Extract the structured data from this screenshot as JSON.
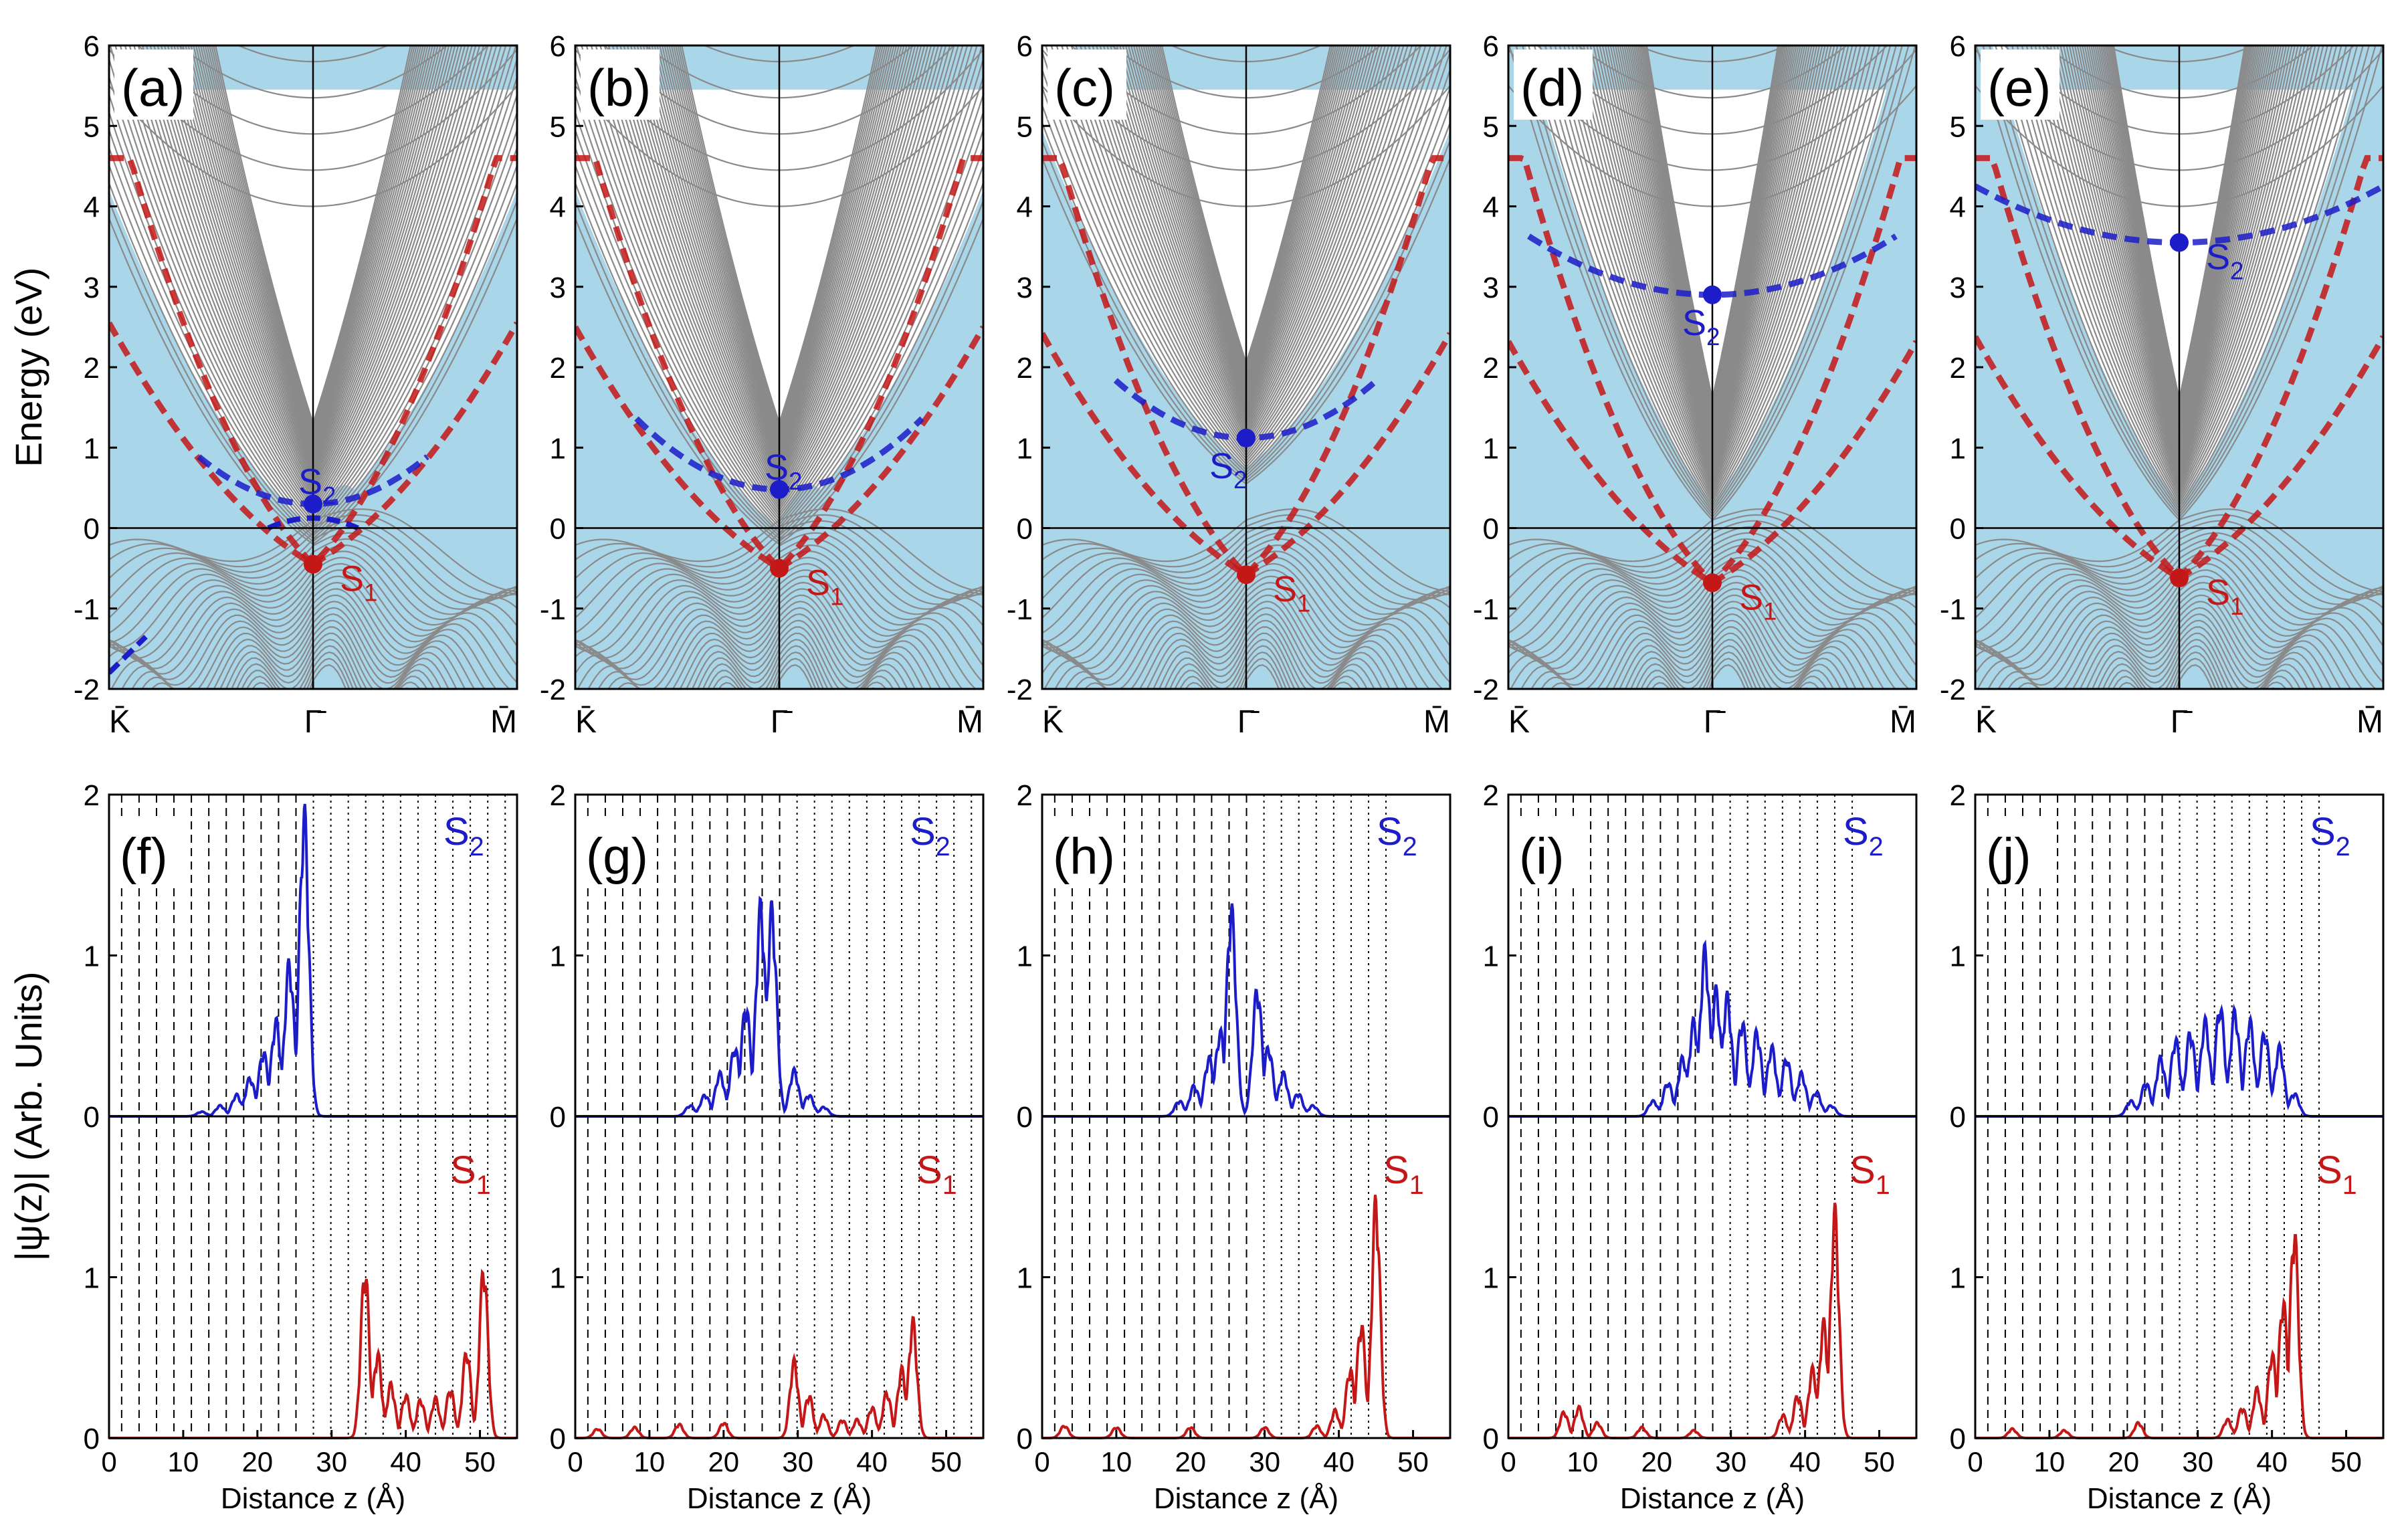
{
  "colors": {
    "s1": "#c41818",
    "s2": "#1c1cc8",
    "bulk_fill": "#aad6ea",
    "bulk_line": "#8a8a8a",
    "axis": "#000000"
  },
  "chart_data": {
    "band_structures": {
      "type": "line",
      "ylabel": "Energy (eV)",
      "ylim": [
        -2,
        6
      ],
      "yticks": [
        -2,
        -1,
        0,
        1,
        2,
        3,
        4,
        5,
        6
      ],
      "xticks": [
        "K̄",
        "Γ̄",
        "M̄"
      ],
      "panels": [
        {
          "label": "(a)",
          "s1_label": "S",
          "s1_sub": "1",
          "s2_label": "S",
          "s2_sub": "2",
          "s1_energy": -0.45,
          "s2_energy": 0.3,
          "s2_curv": 7.5,
          "s2_range": 0.28,
          "s2_lower_extra": true
        },
        {
          "label": "(b)",
          "s1_label": "S",
          "s1_sub": "1",
          "s2_label": "S",
          "s2_sub": "2",
          "s1_energy": -0.5,
          "s2_energy": 0.48,
          "s2_curv": 7.2,
          "s2_range": 0.35,
          "s2_lower_extra": false
        },
        {
          "label": "(c)",
          "s1_label": "S",
          "s1_sub": "1",
          "s2_label": "S",
          "s2_sub": "2",
          "s1_energy": -0.58,
          "s2_energy": 1.12,
          "s2_curv": 7.0,
          "s2_range": 0.32,
          "s2_lower_extra": false
        },
        {
          "label": "(d)",
          "s1_label": "S",
          "s1_sub": "1",
          "s2_label": "S",
          "s2_sub": "2",
          "s1_energy": -0.68,
          "s2_energy": 2.9,
          "s2_curv": 3.6,
          "s2_range": 0.45,
          "s2_lower_extra": false
        },
        {
          "label": "(e)",
          "s1_label": "S",
          "s1_sub": "1",
          "s2_label": "S",
          "s2_sub": "2",
          "s1_energy": -0.62,
          "s2_energy": 3.55,
          "s2_curv": 2.8,
          "s2_range": 0.5,
          "s2_lower_extra": false
        }
      ]
    },
    "wavefunctions": {
      "type": "line",
      "ylabel": "|ψ(z)| (Arb. Units)",
      "xlabel": "Distance z (Å)",
      "xlim": [
        0,
        55
      ],
      "xticks": [
        0,
        10,
        20,
        30,
        40,
        50
      ],
      "ylim_each": [
        0,
        2
      ],
      "yticks": [
        0,
        1,
        2
      ],
      "panels": [
        {
          "label": "(f)",
          "s2_label": "S",
          "s2_sub": "2",
          "s1_label": "S",
          "s1_sub": "1",
          "boundary": 26,
          "s2_peaks": [
            [
              26.3,
              1.97
            ],
            [
              24.3,
              1.0
            ],
            [
              22.5,
              0.62
            ],
            [
              20.8,
              0.42
            ],
            [
              19.0,
              0.25
            ],
            [
              17.2,
              0.14
            ],
            [
              15.0,
              0.07
            ],
            [
              12.5,
              0.03
            ]
          ],
          "s1_peaks": [
            [
              34.5,
              1.1
            ],
            [
              36.2,
              0.55
            ],
            [
              38.0,
              0.35
            ],
            [
              40.0,
              0.28
            ],
            [
              42.0,
              0.25
            ],
            [
              44.0,
              0.26
            ],
            [
              46.0,
              0.32
            ],
            [
              48.2,
              0.57
            ],
            [
              50.5,
              1.12
            ]
          ]
        },
        {
          "label": "(g)",
          "s2_label": "S",
          "s2_sub": "2",
          "s1_label": "S",
          "s1_sub": "1",
          "boundary": 29,
          "s2_peaks": [
            [
              25.0,
              1.37
            ],
            [
              26.5,
              1.35
            ],
            [
              23.0,
              0.72
            ],
            [
              21.5,
              0.45
            ],
            [
              19.5,
              0.28
            ],
            [
              17.5,
              0.14
            ],
            [
              15.5,
              0.07
            ],
            [
              29.5,
              0.3
            ],
            [
              31.5,
              0.14
            ],
            [
              33.5,
              0.06
            ]
          ],
          "s1_peaks": [
            [
              29.5,
              0.5
            ],
            [
              31.5,
              0.28
            ],
            [
              33.5,
              0.15
            ],
            [
              36.0,
              0.12
            ],
            [
              38.0,
              0.12
            ],
            [
              40.0,
              0.2
            ],
            [
              42.0,
              0.3
            ],
            [
              44.0,
              0.45
            ],
            [
              45.5,
              0.76
            ],
            [
              20.0,
              0.1
            ],
            [
              14.0,
              0.09
            ],
            [
              8.0,
              0.07
            ],
            [
              3.0,
              0.06
            ]
          ]
        },
        {
          "label": "(h)",
          "s2_label": "S",
          "s2_sub": "2",
          "s1_label": "S",
          "s1_sub": "1",
          "boundary": 29,
          "s2_peaks": [
            [
              25.5,
              1.35
            ],
            [
              24.0,
              0.55
            ],
            [
              22.5,
              0.38
            ],
            [
              20.5,
              0.2
            ],
            [
              18.5,
              0.1
            ],
            [
              29.0,
              0.83
            ],
            [
              30.5,
              0.45
            ],
            [
              32.5,
              0.28
            ],
            [
              34.5,
              0.15
            ],
            [
              36.5,
              0.07
            ]
          ],
          "s1_peaks": [
            [
              45.0,
              1.55
            ],
            [
              43.0,
              0.75
            ],
            [
              41.5,
              0.45
            ],
            [
              39.5,
              0.18
            ],
            [
              37.0,
              0.08
            ],
            [
              30.0,
              0.07
            ],
            [
              20.0,
              0.07
            ],
            [
              10.0,
              0.07
            ],
            [
              3.0,
              0.08
            ]
          ]
        },
        {
          "label": "(i)",
          "s2_label": "S",
          "s2_sub": "2",
          "s1_label": "S",
          "s1_sub": "1",
          "boundary": 29,
          "s2_peaks": [
            [
              26.5,
              1.08
            ],
            [
              28.0,
              0.82
            ],
            [
              29.5,
              0.78
            ],
            [
              31.5,
              0.62
            ],
            [
              33.5,
              0.55
            ],
            [
              35.5,
              0.45
            ],
            [
              37.5,
              0.38
            ],
            [
              39.5,
              0.28
            ],
            [
              41.5,
              0.16
            ],
            [
              43.5,
              0.07
            ],
            [
              25.0,
              0.62
            ],
            [
              23.5,
              0.38
            ],
            [
              21.5,
              0.22
            ],
            [
              19.5,
              0.1
            ]
          ],
          "s1_peaks": [
            [
              44.0,
              1.47
            ],
            [
              42.5,
              0.75
            ],
            [
              41.0,
              0.45
            ],
            [
              39.0,
              0.28
            ],
            [
              37.0,
              0.15
            ],
            [
              9.5,
              0.2
            ],
            [
              7.5,
              0.17
            ],
            [
              12.0,
              0.1
            ],
            [
              18.0,
              0.07
            ],
            [
              25.0,
              0.05
            ]
          ]
        },
        {
          "label": "(j)",
          "s2_label": "S",
          "s2_sub": "2",
          "s1_label": "S",
          "s1_sub": "1",
          "boundary": 26,
          "s2_peaks": [
            [
              27.0,
              0.5
            ],
            [
              29.0,
              0.55
            ],
            [
              31.0,
              0.62
            ],
            [
              33.0,
              0.72
            ],
            [
              35.0,
              0.68
            ],
            [
              37.0,
              0.62
            ],
            [
              39.0,
              0.55
            ],
            [
              41.0,
              0.45
            ],
            [
              25.0,
              0.38
            ],
            [
              23.0,
              0.22
            ],
            [
              21.0,
              0.1
            ],
            [
              43.0,
              0.15
            ]
          ],
          "s1_peaks": [
            [
              43.0,
              1.36
            ],
            [
              41.5,
              0.9
            ],
            [
              40.0,
              0.55
            ],
            [
              38.0,
              0.32
            ],
            [
              36.0,
              0.2
            ],
            [
              34.0,
              0.12
            ],
            [
              22.0,
              0.1
            ],
            [
              5.0,
              0.06
            ],
            [
              12.0,
              0.05
            ]
          ]
        }
      ]
    }
  }
}
